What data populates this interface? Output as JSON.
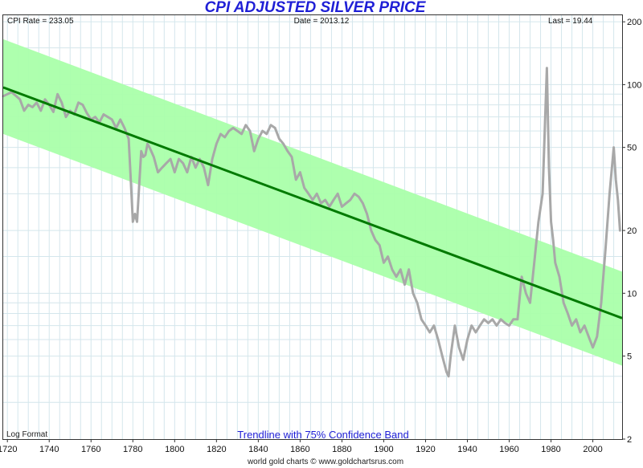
{
  "chart_data": {
    "type": "line",
    "title": "CPI ADJUSTED SILVER PRICE",
    "header": {
      "left": "CPI Rate = 233.05",
      "center": "Date = 2013.12",
      "right": "Last = 19.44"
    },
    "format_label": "Log Format",
    "band_label": "Trendline with 75% Confidence Band",
    "source": "world gold charts © www.goldchartsrus.com",
    "x_axis": {
      "min": 1718,
      "max": 2014,
      "ticks": [
        "1720",
        "1740",
        "1760",
        "1780",
        "1800",
        "1820",
        "1840",
        "1860",
        "1880",
        "1900",
        "1920",
        "1940",
        "1960",
        "1980",
        "2000"
      ]
    },
    "y_axis": {
      "scale": "log",
      "min": 2,
      "max": 215,
      "ticks": [
        "2",
        "5",
        "10",
        "20",
        "50",
        "100",
        "200"
      ]
    },
    "grid": true,
    "colors": {
      "price": "#a8a8a8",
      "trend": "#007a00",
      "band": "#aaffaa",
      "grid": "#d4e6ec",
      "title": "#1f1fd6"
    },
    "trendline": {
      "x": [
        1718,
        2014
      ],
      "y": [
        97,
        7.6
      ]
    },
    "band_upper": {
      "x": [
        1718,
        2014
      ],
      "y": [
        165,
        12.7
      ]
    },
    "band_lower": {
      "x": [
        1718,
        2014
      ],
      "y": [
        58,
        4.5
      ]
    },
    "series": [
      {
        "x": [
          1718,
          1722,
          1726,
          1728,
          1730,
          1732,
          1734,
          1736,
          1738,
          1740,
          1742,
          1744,
          1746,
          1748,
          1750,
          1752,
          1754,
          1756,
          1758,
          1760,
          1762,
          1764,
          1766,
          1768,
          1770,
          1772,
          1774,
          1776,
          1778,
          1779,
          1780,
          1781,
          1782,
          1784,
          1785,
          1786,
          1787,
          1788,
          1790,
          1792,
          1794,
          1796,
          1798,
          1800,
          1802,
          1804,
          1806,
          1808,
          1810,
          1812,
          1814,
          1816,
          1818,
          1820,
          1822,
          1824,
          1826,
          1828,
          1830,
          1832,
          1834,
          1836,
          1838,
          1840,
          1842,
          1844,
          1846,
          1848,
          1850,
          1852,
          1854,
          1856,
          1858,
          1860,
          1862,
          1864,
          1866,
          1868,
          1870,
          1872,
          1874,
          1876,
          1878,
          1880,
          1882,
          1884,
          1886,
          1888,
          1890,
          1892,
          1894,
          1896,
          1898,
          1900,
          1902,
          1904,
          1906,
          1908,
          1910,
          1912,
          1914,
          1916,
          1918,
          1920,
          1922,
          1924,
          1926,
          1928,
          1930,
          1931,
          1932,
          1934,
          1936,
          1938,
          1940,
          1942,
          1944,
          1946,
          1948,
          1950,
          1952,
          1954,
          1956,
          1958,
          1960,
          1962,
          1964,
          1966,
          1968,
          1970,
          1972,
          1974,
          1976,
          1978,
          1979,
          1980,
          1981,
          1982,
          1984,
          1986,
          1988,
          1990,
          1992,
          1994,
          1996,
          1998,
          2000,
          2002,
          2004,
          2006,
          2008,
          2010,
          2011,
          2012,
          2013
        ],
        "y": [
          88,
          92,
          85,
          75,
          80,
          78,
          82,
          75,
          85,
          80,
          74,
          90,
          82,
          70,
          75,
          72,
          82,
          80,
          73,
          68,
          70,
          66,
          72,
          70,
          68,
          62,
          68,
          62,
          55,
          35,
          22,
          24,
          22,
          48,
          45,
          46,
          52,
          50,
          45,
          38,
          40,
          42,
          44,
          38,
          44,
          42,
          38,
          45,
          40,
          44,
          40,
          33,
          44,
          52,
          58,
          56,
          60,
          62,
          60,
          58,
          64,
          60,
          48,
          55,
          60,
          58,
          64,
          62,
          55,
          52,
          48,
          45,
          35,
          38,
          32,
          30,
          28,
          30,
          27,
          28,
          26,
          28,
          30,
          26,
          27,
          28,
          30,
          29,
          27,
          24,
          20,
          18,
          17,
          14,
          15,
          13,
          12,
          13,
          11,
          13,
          10,
          9,
          7.5,
          7,
          6.5,
          7,
          6,
          5,
          4.2,
          4,
          5,
          7,
          5.5,
          4.8,
          6,
          7,
          6.5,
          7,
          7.5,
          7.2,
          7.5,
          7,
          7.5,
          7.2,
          7,
          7.5,
          7.5,
          12,
          10,
          9,
          14,
          22,
          30,
          120,
          40,
          22,
          18,
          14,
          12,
          9,
          8,
          7,
          7.5,
          6.5,
          7,
          6.2,
          5.5,
          6.2,
          9,
          16,
          30,
          50,
          35,
          28,
          20
        ]
      }
    ]
  }
}
